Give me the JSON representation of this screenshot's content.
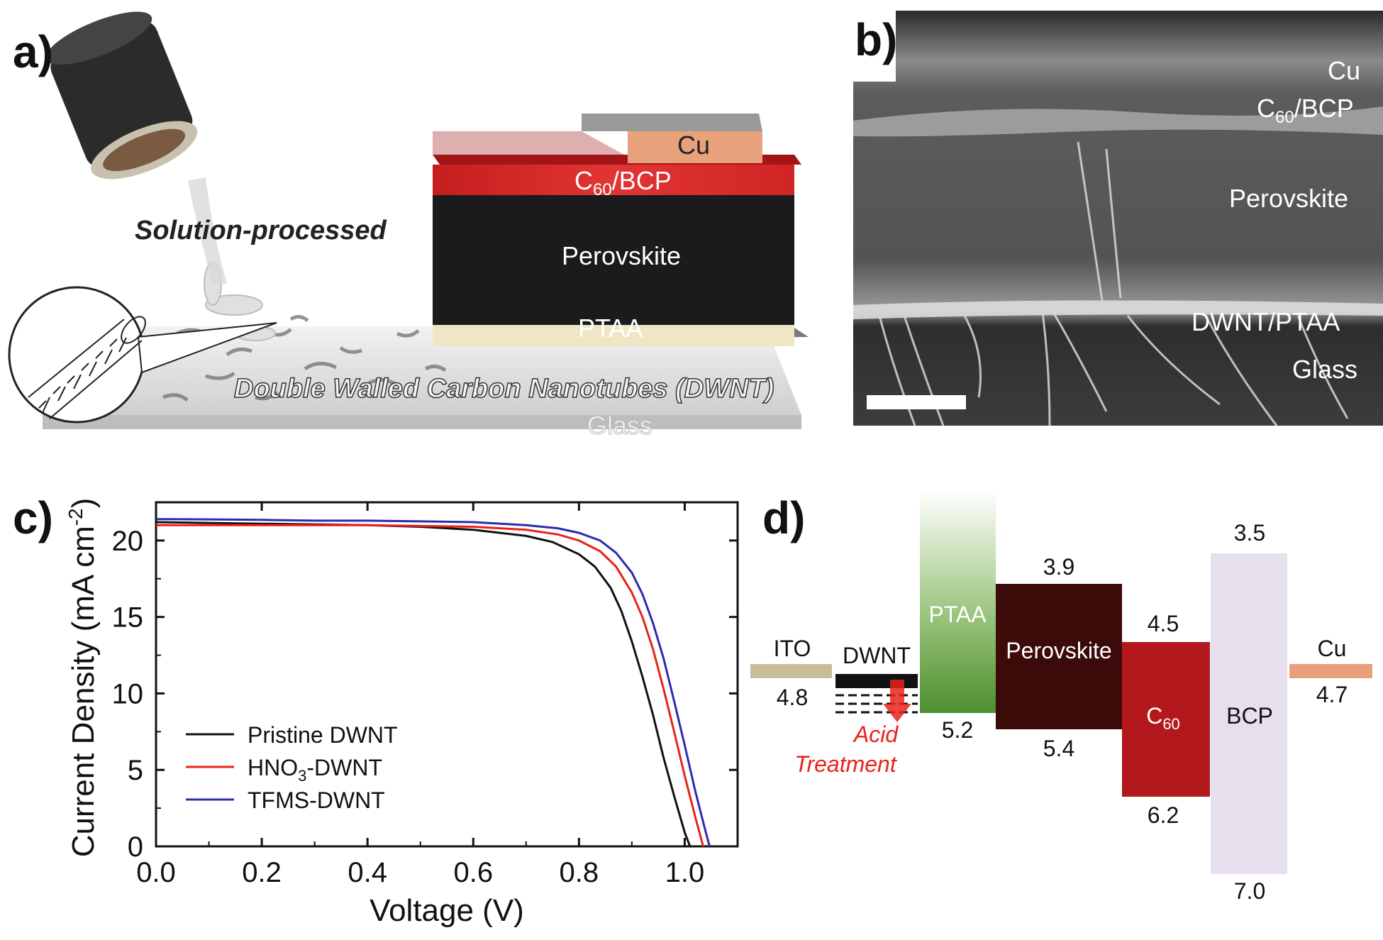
{
  "panels": {
    "a": {
      "letter": "a)",
      "process_label": "Solution-processed",
      "substrate_label": "Double Walled Carbon Nanotubes (DWNT)",
      "glass_label": "Glass",
      "layers": {
        "cu": "Cu",
        "c60bcp_c": "C",
        "c60bcp_sub": "60",
        "c60bcp_rest": "/BCP",
        "perovskite": "Perovskite",
        "ptaa": "PTAA"
      }
    },
    "b": {
      "letter": "b)",
      "labels": {
        "cu": "Cu",
        "c60bcp_c": "C",
        "c60bcp_sub": "60",
        "c60bcp_rest": "/BCP",
        "perovskite": "Perovskite",
        "dwnt_ptaa": "DWNT/PTAA",
        "glass": "Glass"
      }
    },
    "c": {
      "letter": "c)"
    },
    "d": {
      "letter": "d)"
    }
  },
  "chart_data": [
    {
      "type": "line",
      "xlabel": "Voltage (V)",
      "ylabel_main": "Current Density (mA cm",
      "ylabel_sup": "-2",
      "ylabel_close": ")",
      "xlim": [
        0.0,
        1.1
      ],
      "ylim": [
        0,
        22.5
      ],
      "xticks": [
        0.0,
        0.2,
        0.4,
        0.6,
        0.8,
        1.0
      ],
      "xtick_labels": [
        "0.0",
        "0.2",
        "0.4",
        "0.6",
        "0.8",
        "1.0"
      ],
      "yticks": [
        0,
        5,
        10,
        15,
        20
      ],
      "ytick_labels": [
        "0",
        "5",
        "10",
        "15",
        "20"
      ],
      "legend_position": "bottom-left",
      "series": [
        {
          "name": "Pristine DWNT",
          "legend_main": "Pristine DWNT",
          "legend_sub": "",
          "legend_rest": "",
          "color": "#111111",
          "points": [
            [
              0,
              21.2
            ],
            [
              0.1,
              21.15
            ],
            [
              0.2,
              21.1
            ],
            [
              0.3,
              21.05
            ],
            [
              0.4,
              21.0
            ],
            [
              0.5,
              20.9
            ],
            [
              0.6,
              20.7
            ],
            [
              0.7,
              20.3
            ],
            [
              0.75,
              19.9
            ],
            [
              0.8,
              19.1
            ],
            [
              0.83,
              18.3
            ],
            [
              0.86,
              16.9
            ],
            [
              0.88,
              15.4
            ],
            [
              0.9,
              13.4
            ],
            [
              0.92,
              11.1
            ],
            [
              0.94,
              8.6
            ],
            [
              0.96,
              5.8
            ],
            [
              0.98,
              3.3
            ],
            [
              1.0,
              0.9
            ],
            [
              1.01,
              0.0
            ]
          ]
        },
        {
          "name": "HNO3-DWNT",
          "legend_main": "HNO",
          "legend_sub": "3",
          "legend_rest": "-DWNT",
          "color": "#e8231a",
          "points": [
            [
              0,
              21.0
            ],
            [
              0.1,
              21.0
            ],
            [
              0.2,
              21.0
            ],
            [
              0.3,
              21.0
            ],
            [
              0.4,
              21.0
            ],
            [
              0.5,
              20.95
            ],
            [
              0.6,
              20.9
            ],
            [
              0.7,
              20.7
            ],
            [
              0.76,
              20.4
            ],
            [
              0.8,
              20.0
            ],
            [
              0.84,
              19.3
            ],
            [
              0.87,
              18.3
            ],
            [
              0.9,
              16.6
            ],
            [
              0.92,
              15.0
            ],
            [
              0.94,
              12.9
            ],
            [
              0.96,
              10.3
            ],
            [
              0.98,
              7.5
            ],
            [
              1.0,
              4.6
            ],
            [
              1.02,
              1.9
            ],
            [
              1.035,
              0.0
            ]
          ]
        },
        {
          "name": "TFMS-DWNT",
          "legend_main": "TFMS-DWNT",
          "legend_sub": "",
          "legend_rest": "",
          "color": "#2b2bb0",
          "points": [
            [
              0,
              21.4
            ],
            [
              0.1,
              21.38
            ],
            [
              0.2,
              21.35
            ],
            [
              0.3,
              21.3
            ],
            [
              0.4,
              21.3
            ],
            [
              0.5,
              21.25
            ],
            [
              0.6,
              21.2
            ],
            [
              0.7,
              21.0
            ],
            [
              0.76,
              20.8
            ],
            [
              0.8,
              20.5
            ],
            [
              0.84,
              20.0
            ],
            [
              0.87,
              19.2
            ],
            [
              0.9,
              17.9
            ],
            [
              0.92,
              16.5
            ],
            [
              0.94,
              14.6
            ],
            [
              0.96,
              12.3
            ],
            [
              0.98,
              9.5
            ],
            [
              1.0,
              6.6
            ],
            [
              1.02,
              3.6
            ],
            [
              1.04,
              0.9
            ],
            [
              1.047,
              0.0
            ]
          ]
        }
      ]
    },
    {
      "type": "energy-level-diagram",
      "materials": [
        {
          "name": "ITO",
          "work_function": "4.8",
          "color": "#c9bd98"
        },
        {
          "name": "DWNT",
          "note_line1": "Acid",
          "note_line2": "Treatment",
          "color": "#111111",
          "note_color": "#e8231a"
        },
        {
          "name": "PTAA",
          "lumo": "",
          "homo": "5.2",
          "color": "#5a9a3c"
        },
        {
          "name": "Perovskite",
          "lumo": "3.9",
          "homo": "5.4",
          "color": "#3d0a0a"
        },
        {
          "name_main": "C",
          "name_sub": "60",
          "lumo": "4.5",
          "homo": "6.2",
          "color": "#b3181c"
        },
        {
          "name": "BCP",
          "lumo": "3.5",
          "homo": "7.0",
          "color": "#e6dfee"
        },
        {
          "name": "Cu",
          "work_function": "4.7",
          "color": "#e6a07c"
        }
      ]
    }
  ]
}
